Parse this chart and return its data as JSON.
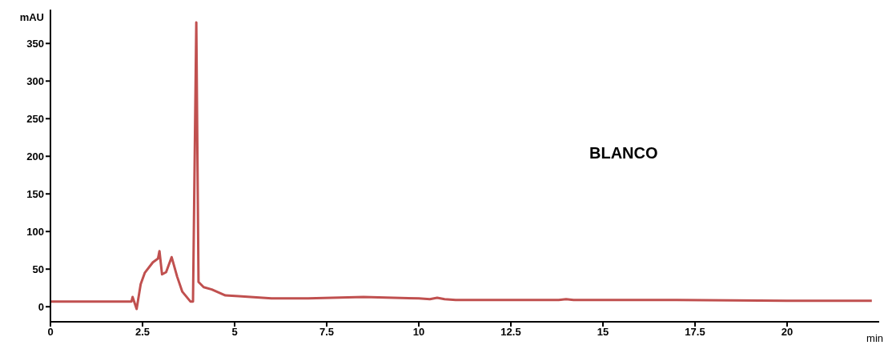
{
  "chart_data": {
    "type": "line",
    "xlabel": "min",
    "ylabel": "mAU",
    "annotations": [
      "BLANCO"
    ],
    "x": [
      0,
      1,
      2,
      2.2,
      2.23,
      2.34,
      2.45,
      2.56,
      2.78,
      2.92,
      2.96,
      3.03,
      3.14,
      3.29,
      3.44,
      3.58,
      3.8,
      3.87,
      3.96,
      4.02,
      4.16,
      4.38,
      4.75,
      5.11,
      6,
      7,
      8.5,
      10,
      10.3,
      10.5,
      10.7,
      11,
      12,
      13.8,
      14,
      14.2,
      15,
      17,
      20,
      22.3
    ],
    "series": [
      {
        "color": "#c0504f",
        "values": [
          7,
          7,
          7,
          7,
          13,
          -3,
          30,
          45,
          59,
          64,
          74,
          43,
          46,
          66,
          40,
          20,
          7,
          7,
          378,
          33,
          26,
          23,
          15,
          14,
          11,
          11,
          13,
          11,
          10,
          12,
          10,
          9,
          9,
          9,
          10,
          9,
          9,
          9,
          8,
          8
        ]
      }
    ],
    "xlim": [
      0,
      22.5
    ],
    "xticks": [
      0,
      2.5,
      5,
      7.5,
      10,
      12.5,
      15,
      17.5,
      20
    ],
    "ylim": [
      -20,
      395
    ],
    "yticks": [
      0,
      50,
      100,
      150,
      200,
      250,
      300,
      350
    ],
    "grid": false,
    "legend": false,
    "marker": "none",
    "line_style": "solid"
  }
}
